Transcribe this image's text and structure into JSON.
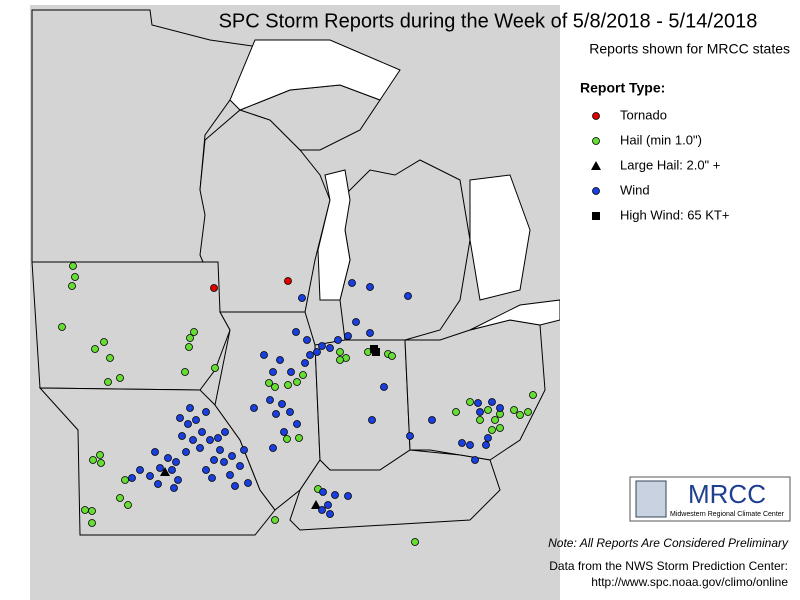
{
  "header": {
    "title": "SPC Storm Reports during the Week of 5/8/2018 - 5/14/2018",
    "subtitle": "Reports shown for MRCC states"
  },
  "legend": {
    "title": "Report Type:",
    "items": [
      "Tornado",
      "Hail (min 1.0\")",
      "Large Hail: 2.0\" +",
      "Wind",
      "High Wind: 65 KT+"
    ]
  },
  "logo": {
    "name": "MRCC",
    "caption": "Midwestern Regional Climate Center"
  },
  "footer": {
    "note": "Note: All Reports Are Considered Preliminary",
    "source": "Data from the NWS Storm Prediction Center:",
    "url": "http://www.spc.noaa.gov/climo/online"
  }
}
